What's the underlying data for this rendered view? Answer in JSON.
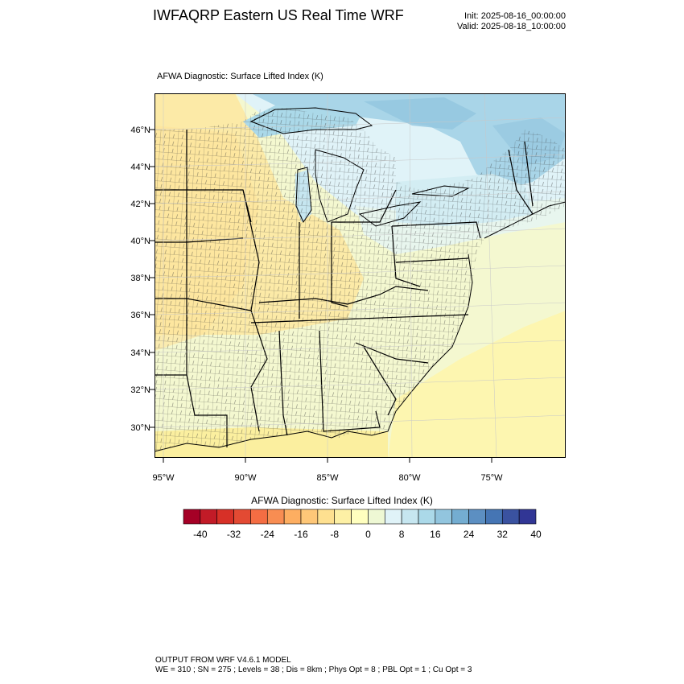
{
  "title": "IWFAQRP Eastern US Real Time WRF",
  "init_label": "Init: 2025-08-16_00:00:00",
  "valid_label": "Valid: 2025-08-18_10:00:00",
  "map_subtitle": "AFWA Diagnostic: Surface Lifted Index   (K)",
  "map": {
    "lat_labels": [
      "46°N",
      "44°N",
      "42°N",
      "40°N",
      "38°N",
      "36°N",
      "34°N",
      "32°N",
      "30°N"
    ],
    "lon_labels": [
      "95°W",
      "90°W",
      "85°W",
      "80°W",
      "75°W"
    ]
  },
  "colorbar": {
    "title": "AFWA Diagnostic: Surface Lifted Index  (K)",
    "colors": [
      "#a50026",
      "#c21b27",
      "#d73027",
      "#e34a33",
      "#f46d43",
      "#f88d52",
      "#fdae61",
      "#fec778",
      "#fee090",
      "#fdf0a5",
      "#ffffbf",
      "#eef8d4",
      "#e0f3f8",
      "#c6e6f0",
      "#abd9e9",
      "#92c5de",
      "#74add1",
      "#5c8fc2",
      "#4575b4",
      "#3a52a0",
      "#313695"
    ],
    "tick_labels": [
      "-40",
      "-32",
      "-24",
      "-16",
      "-8",
      "0",
      "8",
      "16",
      "24",
      "32",
      "40"
    ]
  },
  "footer": {
    "line1": "OUTPUT FROM WRF V4.6.1 MODEL",
    "line2": "WE = 310 ; SN = 275 ; Levels = 38 ; Dis = 8km ; Phys Opt = 8 ; PBL Opt = 1 ; Cu Opt = 3"
  }
}
